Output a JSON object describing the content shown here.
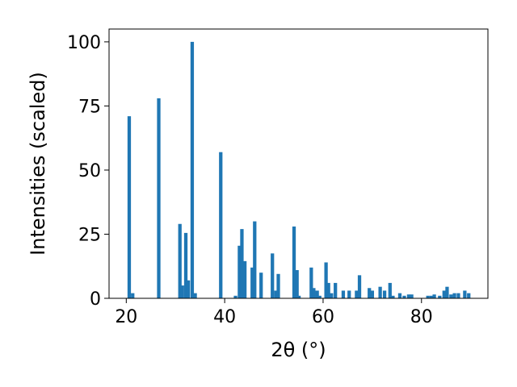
{
  "chart_data": {
    "type": "bar",
    "xlabel": "2θ (°)",
    "ylabel": "Intensities (scaled)",
    "xlim": [
      16.5,
      93.5
    ],
    "ylim": [
      0,
      105
    ],
    "xticks": [
      20,
      40,
      60,
      80
    ],
    "yticks": [
      0,
      25,
      50,
      75,
      100
    ],
    "bar_color": "#1f77b4",
    "bar_width": 0.7,
    "x": [
      20.6,
      21.3,
      26.6,
      30.9,
      31.4,
      32.1,
      32.6,
      33.4,
      34.0,
      39.2,
      42.2,
      43.0,
      43.5,
      44.1,
      45.6,
      46.1,
      47.4,
      49.7,
      50.4,
      50.9,
      54.1,
      54.7,
      55.1,
      57.6,
      58.1,
      58.8,
      59.3,
      60.6,
      61.1,
      61.7,
      62.5,
      64.1,
      65.3,
      66.8,
      67.4,
      69.4,
      70.0,
      71.6,
      72.5,
      73.6,
      74.2,
      75.6,
      76.5,
      77.4,
      78.0,
      81.3,
      82.0,
      82.6,
      83.7,
      84.6,
      85.2,
      86.0,
      86.7,
      87.5,
      88.8,
      89.6
    ],
    "values": [
      71,
      2,
      78,
      29,
      5,
      25.5,
      7,
      100,
      2,
      57,
      1,
      20.5,
      27,
      14.5,
      12,
      30,
      10,
      17.5,
      3,
      9.5,
      28,
      11,
      1,
      12,
      4,
      3,
      1,
      14,
      6,
      2,
      6,
      3,
      3,
      3,
      9,
      4,
      3,
      4.5,
      3,
      6,
      1,
      2,
      1,
      1.5,
      1.5,
      1,
      1,
      1.5,
      1,
      3,
      4.5,
      1.5,
      2,
      2,
      3,
      2
    ]
  }
}
